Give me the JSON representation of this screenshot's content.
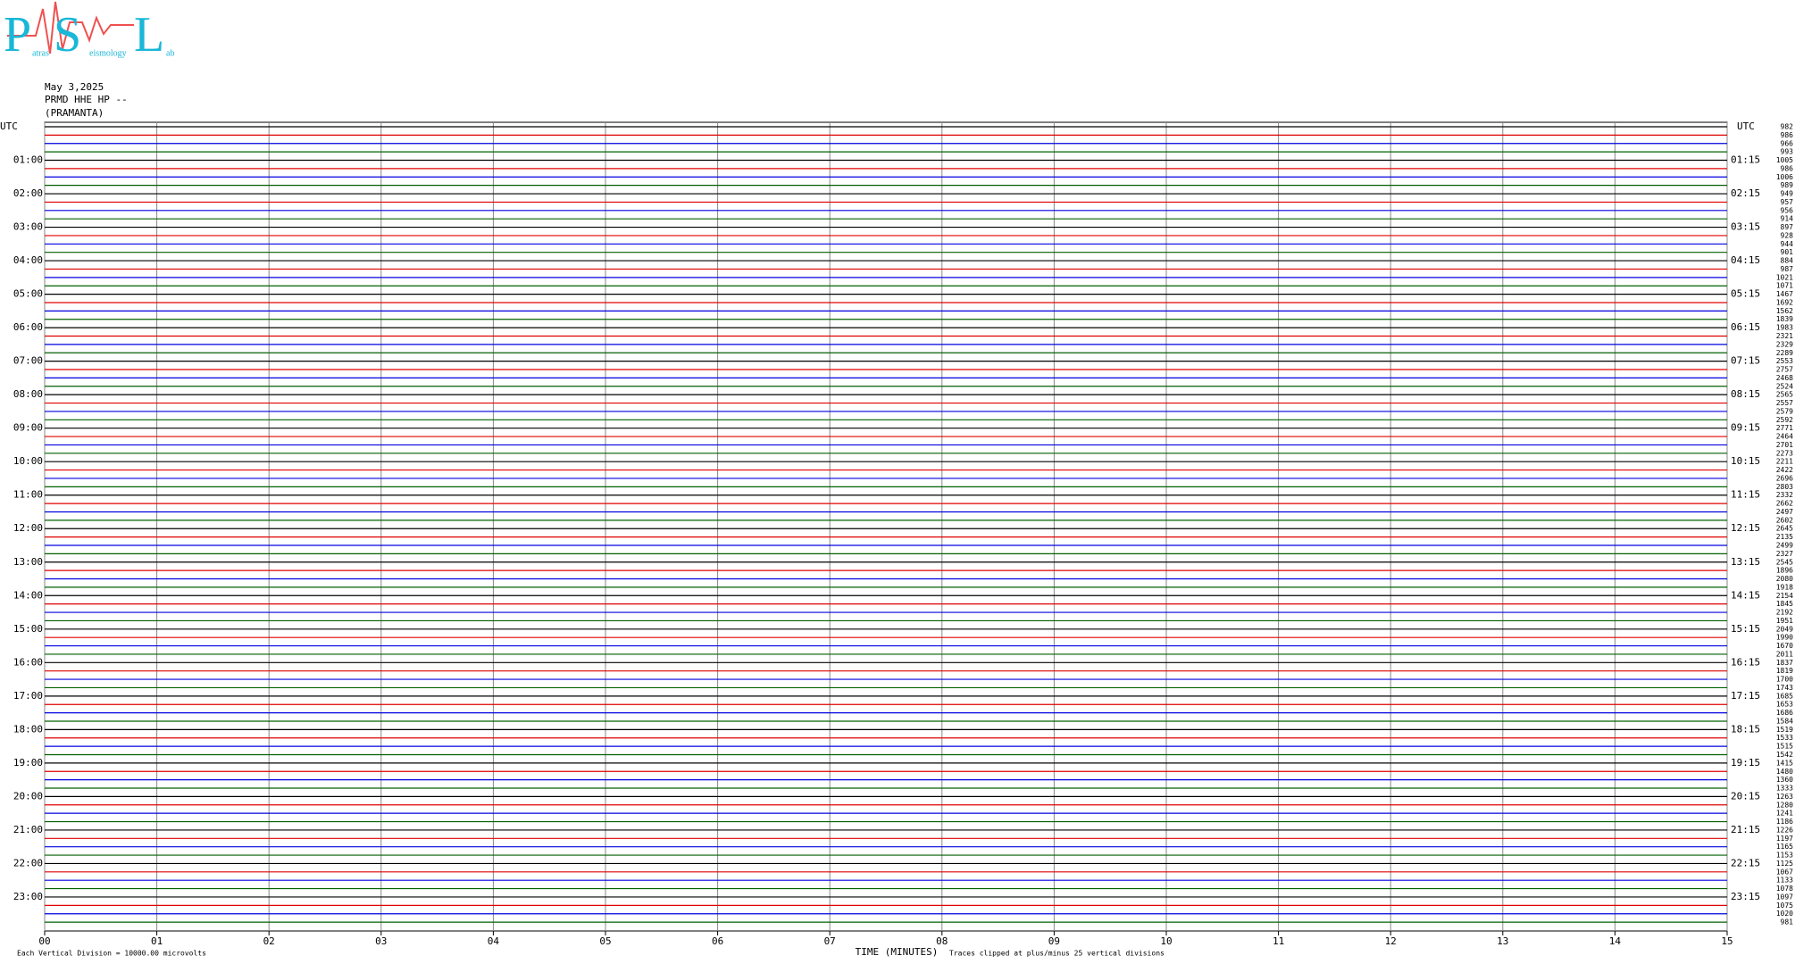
{
  "logo": {
    "letters": [
      "P",
      "S",
      "L"
    ],
    "words": [
      "atras",
      "eismology",
      "ab"
    ]
  },
  "header": {
    "date": "May 3,2025",
    "station": "PRMD HHE HP --",
    "place": "(PRAMANTA)"
  },
  "chart_data": {
    "type": "helicorder",
    "left_axis_title": "UTC",
    "right_axis_title": "UTC",
    "left_labels": [
      "01:00",
      "02:00",
      "03:00",
      "04:00",
      "05:00",
      "06:00",
      "07:00",
      "08:00",
      "09:00",
      "10:00",
      "11:00",
      "12:00",
      "13:00",
      "14:00",
      "15:00",
      "16:00",
      "17:00",
      "18:00",
      "19:00",
      "20:00",
      "21:00",
      "22:00",
      "23:00"
    ],
    "right_labels": [
      "01:15",
      "02:15",
      "03:15",
      "04:15",
      "05:15",
      "06:15",
      "07:15",
      "08:15",
      "09:15",
      "10:15",
      "11:15",
      "12:15",
      "13:15",
      "14:15",
      "15:15",
      "16:15",
      "17:15",
      "18:15",
      "19:15",
      "20:15",
      "21:15",
      "22:15",
      "23:15"
    ],
    "trace_values": [
      982,
      986,
      966,
      993,
      1005,
      986,
      1006,
      989,
      949,
      957,
      956,
      914,
      897,
      928,
      944,
      901,
      884,
      987,
      1021,
      1071,
      1467,
      1692,
      1562,
      1839,
      1983,
      2321,
      2329,
      2289,
      2553,
      2757,
      2468,
      2524,
      2565,
      2557,
      2579,
      2592,
      2771,
      2464,
      2701,
      2273,
      2211,
      2422,
      2696,
      2803,
      2332,
      2662,
      2497,
      2602,
      2645,
      2135,
      2499,
      2327,
      2545,
      1896,
      2080,
      1918,
      2154,
      1845,
      2192,
      1951,
      2049,
      1990,
      1670,
      2011,
      1837,
      1819,
      1700,
      1743,
      1685,
      1653,
      1686,
      1584,
      1519,
      1533,
      1515,
      1542,
      1415,
      1480,
      1360,
      1333,
      1263,
      1280,
      1241,
      1186,
      1226,
      1197,
      1165,
      1153,
      1125,
      1067,
      1133,
      1078,
      1097,
      1075,
      1020,
      981
    ],
    "trace_colors": [
      "#000000",
      "#e00000",
      "#0000e0",
      "#006000"
    ],
    "xlim": [
      0,
      15
    ],
    "xticks": [
      {
        "value": 0,
        "label": "00"
      },
      {
        "value": 1,
        "label": "01"
      },
      {
        "value": 2,
        "label": "02"
      },
      {
        "value": 3,
        "label": "03"
      },
      {
        "value": 4,
        "label": "04"
      },
      {
        "value": 5,
        "label": "05"
      },
      {
        "value": 6,
        "label": "06"
      },
      {
        "value": 7,
        "label": "07"
      },
      {
        "value": 8,
        "label": "08"
      },
      {
        "value": 9,
        "label": "09"
      },
      {
        "value": 10,
        "label": "10"
      },
      {
        "value": 11,
        "label": "11"
      },
      {
        "value": 12,
        "label": "12"
      },
      {
        "value": 13,
        "label": "13"
      },
      {
        "value": 14,
        "label": "14"
      },
      {
        "value": 15,
        "label": "15"
      }
    ],
    "xlabel": "TIME (MINUTES)",
    "scale_note": "Each Vertical Division = 10000.00 microvolts",
    "clip_note": "Traces clipped at plus/minus 25 vertical divisions"
  }
}
